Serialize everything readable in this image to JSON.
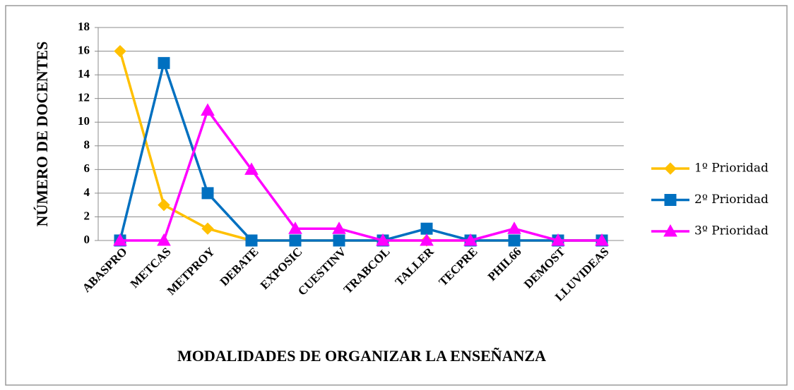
{
  "chart_data": {
    "type": "line",
    "y_label": "NÚMERO DE DOCENTES",
    "x_label": "MODALIDADES DE ORGANIZAR LA ENSEÑANZA",
    "categories": [
      "ABASPRO",
      "METCAS",
      "METPROY",
      "DEBATE",
      "EXPOSIC",
      "CUESTINV",
      "TRABCOL",
      "TALLER",
      "TECPRE",
      "PHIL66",
      "DEMOST",
      "LLUVIDEAS"
    ],
    "series": [
      {
        "name": "1º Prioridad",
        "color": "#ffc000",
        "marker": "diamond",
        "values": [
          16,
          3,
          1,
          0,
          0,
          0,
          0,
          0,
          0,
          0,
          0,
          0
        ]
      },
      {
        "name": "2º Prioridad",
        "color": "#0070c0",
        "marker": "square",
        "values": [
          0,
          15,
          4,
          0,
          0,
          0,
          0,
          1,
          0,
          0,
          0,
          0
        ]
      },
      {
        "name": "3º Prioridad",
        "color": "#ff00ff",
        "marker": "triangle",
        "values": [
          0,
          0,
          11,
          6,
          1,
          1,
          0,
          0,
          0,
          1,
          0,
          0
        ]
      }
    ],
    "ylim": [
      0,
      18
    ],
    "yticks": [
      0,
      2,
      4,
      6,
      8,
      10,
      12,
      14,
      16,
      18
    ],
    "grid": true,
    "legend": "right"
  }
}
